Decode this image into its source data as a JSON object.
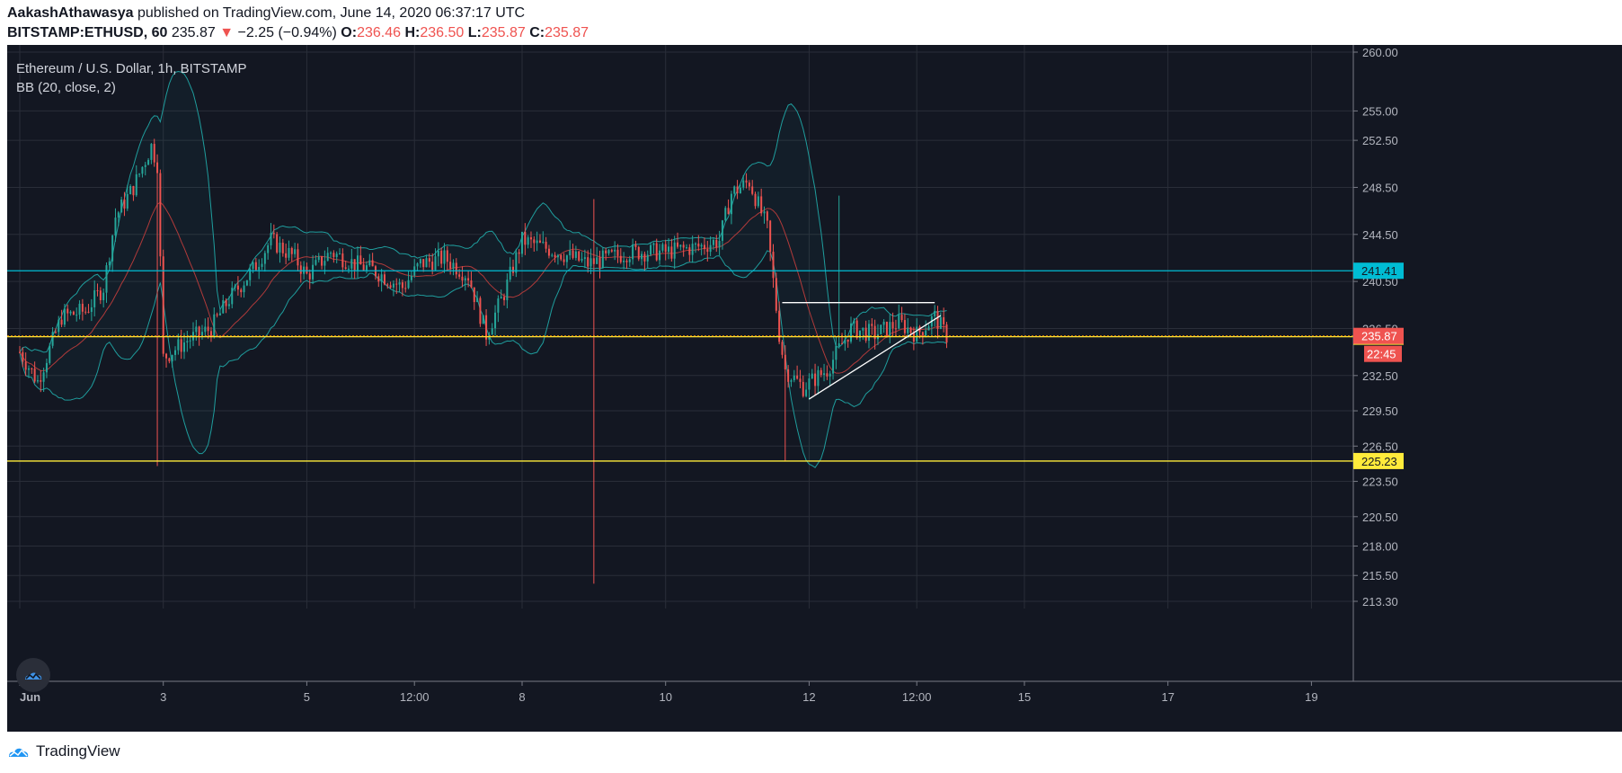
{
  "header": {
    "author": "AakashAthawasya",
    "published_text": "published on TradingView.com, June 14, 2020 06:37:17 UTC",
    "symbol": "BITSTAMP:ETHUSD, 60",
    "last": "235.87",
    "change": "−2.25 (−0.94%)",
    "ohlc": [
      {
        "label": "O:",
        "value": "236.46"
      },
      {
        "label": "H:",
        "value": "236.50"
      },
      {
        "label": "L:",
        "value": "235.87"
      },
      {
        "label": "C:",
        "value": "235.87"
      }
    ]
  },
  "legend": {
    "title": "Ethereum / U.S. Dollar, 1h, BITSTAMP",
    "indicator": "BB (20, close, 2)"
  },
  "footer": {
    "brand": "TradingView"
  },
  "colors": {
    "background": "#131722",
    "grid": "#2a2e39",
    "up": "#26a69a",
    "down": "#ef5350",
    "bb_band": "#1f9d9d",
    "bb_basis": "#b03a3a",
    "cyan_level": "#00bcd4",
    "yellow_level": "#ffeb3b",
    "price_line": "#ff9800"
  },
  "chart_data": {
    "type": "candlestick",
    "title": "Ethereum / U.S. Dollar, 1h, BITSTAMP",
    "x_ticks": [
      "Jun",
      "3",
      "5",
      "12:00",
      "8",
      "10",
      "12",
      "12:00",
      "15",
      "17",
      "19"
    ],
    "y_ticks": [
      "260.00",
      "255.00",
      "252.50",
      "248.50",
      "244.50",
      "240.50",
      "236.50",
      "232.50",
      "229.50",
      "226.50",
      "223.50",
      "220.50",
      "218.00",
      "215.50",
      "213.30"
    ],
    "ylim": [
      213.3,
      260.0
    ],
    "x_range": [
      "Jun 1 00:00",
      "Jun 19 14:00"
    ],
    "horizontal_levels": [
      {
        "value": 241.41,
        "label": "241.41",
        "color": "#00bcd4"
      },
      {
        "value": 235.8,
        "label": "235.80",
        "color": "#ffeb3b"
      },
      {
        "value": 225.23,
        "label": "225.23",
        "color": "#ffeb3b"
      }
    ],
    "last_price": {
      "value": 235.87,
      "label": "235.87",
      "countdown": "22:45"
    },
    "trendlines": [
      {
        "from": [
          "Jun 11 15:00",
          238.7
        ],
        "to": [
          "Jun 13 18:00",
          238.7
        ]
      },
      {
        "from": [
          "Jun 12 00:00",
          230.5
        ],
        "to": [
          "Jun 13 20:00",
          237.6
        ]
      }
    ],
    "price_path": [
      [
        "Jun 1 00:00",
        234.5
      ],
      [
        "Jun 1 06:00",
        232.0
      ],
      [
        "Jun 1 14:00",
        237.5
      ],
      [
        "Jun 1 22:00",
        238.0
      ],
      [
        "Jun 2 04:00",
        240.0
      ],
      [
        "Jun 2 08:00",
        246.0
      ],
      [
        "Jun 2 14:00",
        248.5
      ],
      [
        "Jun 2 20:00",
        252.0
      ],
      [
        "Jun 2 22:00",
        250.5
      ],
      [
        "Jun 3 00:00",
        234.0
      ],
      [
        "Jun 3 08:00",
        235.5
      ],
      [
        "Jun 3 16:00",
        236.5
      ],
      [
        "Jun 3 22:00",
        239.0
      ],
      [
        "Jun 4 06:00",
        241.5
      ],
      [
        "Jun 4 12:00",
        244.0
      ],
      [
        "Jun 4 20:00",
        242.5
      ],
      [
        "Jun 5 00:00",
        241.0
      ],
      [
        "Jun 5 08:00",
        243.0
      ],
      [
        "Jun 5 16:00",
        242.0
      ],
      [
        "Jun 5 22:00",
        241.5
      ],
      [
        "Jun 6 08:00",
        240.0
      ],
      [
        "Jun 6 14:00",
        242.0
      ],
      [
        "Jun 6 22:00",
        242.5
      ],
      [
        "Jun 7 06:00",
        241.0
      ],
      [
        "Jun 7 12:00",
        236.0
      ],
      [
        "Jun 7 18:00",
        239.5
      ],
      [
        "Jun 8 00:00",
        244.0
      ],
      [
        "Jun 8 12:00",
        243.0
      ],
      [
        "Jun 8 22:00",
        242.0
      ],
      [
        "Jun 9 12:00",
        243.0
      ],
      [
        "Jun 10 00:00",
        243.0
      ],
      [
        "Jun 10 12:00",
        243.5
      ],
      [
        "Jun 10 18:00",
        244.0
      ],
      [
        "Jun 10 22:00",
        248.0
      ],
      [
        "Jun 11 04:00",
        249.0
      ],
      [
        "Jun 11 10:00",
        245.0
      ],
      [
        "Jun 11 14:00",
        236.0
      ],
      [
        "Jun 11 16:00",
        233.0
      ],
      [
        "Jun 11 22:00",
        231.5
      ],
      [
        "Jun 12 06:00",
        233.0
      ],
      [
        "Jun 12 14:00",
        236.5
      ],
      [
        "Jun 12 22:00",
        236.0
      ],
      [
        "Jun 13 06:00",
        237.0
      ],
      [
        "Jun 13 12:00",
        236.0
      ],
      [
        "Jun 13 18:00",
        237.5
      ],
      [
        "Jun 13 22:00",
        235.87
      ]
    ],
    "spikes": [
      {
        "time": "Jun 2 22:00",
        "low": 224.8
      },
      {
        "time": "Jun 9 00:00",
        "high": 247.5,
        "low": 214.8
      },
      {
        "time": "Jun 11 16:00",
        "low": 225.2
      },
      {
        "time": "Jun 12 10:00",
        "high": 247.8
      }
    ]
  }
}
